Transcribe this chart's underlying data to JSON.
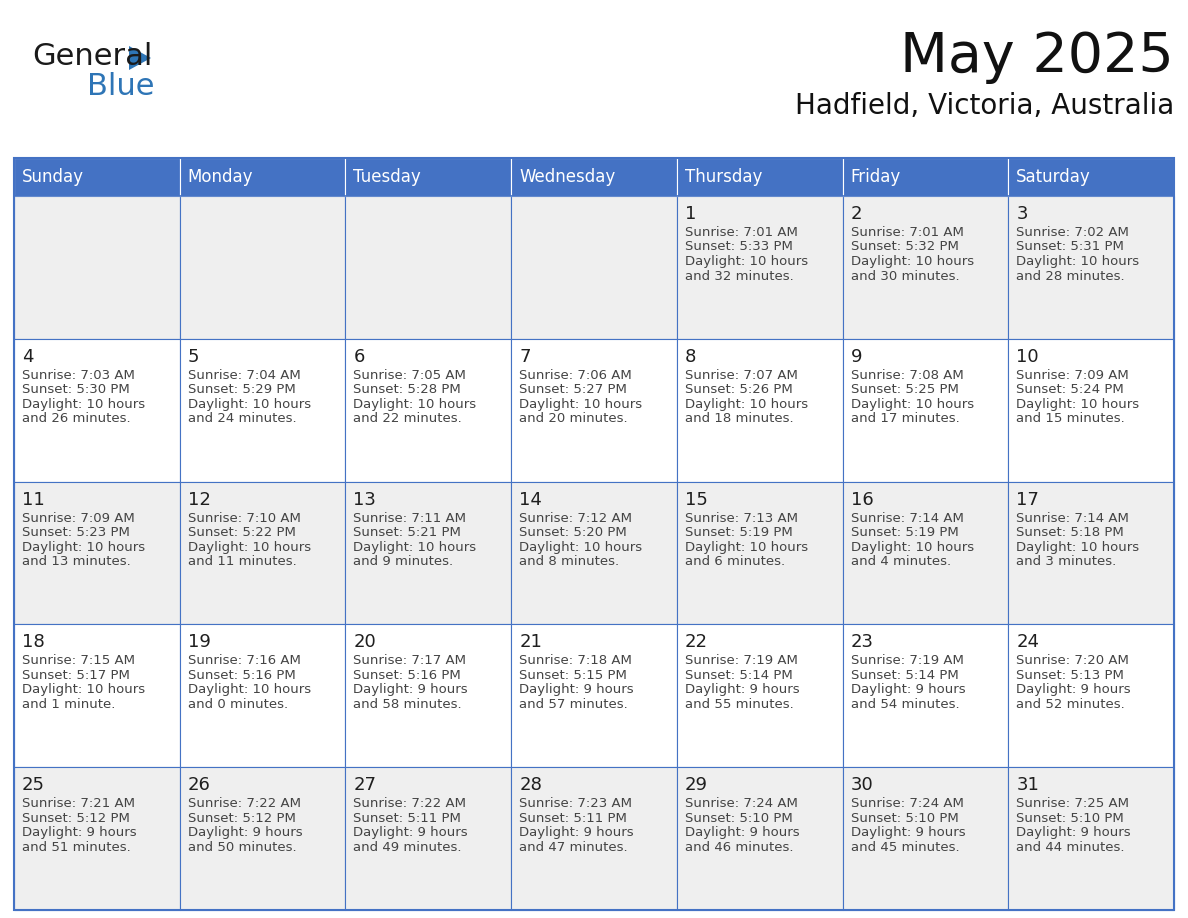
{
  "title": "May 2025",
  "subtitle": "Hadfield, Victoria, Australia",
  "days_of_week": [
    "Sunday",
    "Monday",
    "Tuesday",
    "Wednesday",
    "Thursday",
    "Friday",
    "Saturday"
  ],
  "header_bg": "#4472C4",
  "header_text": "#FFFFFF",
  "cell_bg_odd": "#EFEFEF",
  "cell_bg_even": "#FFFFFF",
  "border_color": "#4472C4",
  "day_num_color": "#1F1F1F",
  "text_color": "#444444",
  "logo_general_color": "#1F1F1F",
  "logo_blue_color": "#2E75B6",
  "calendar_data": [
    [
      {
        "day": null,
        "sunrise": null,
        "sunset": null,
        "daylight_line1": null,
        "daylight_line2": null
      },
      {
        "day": null,
        "sunrise": null,
        "sunset": null,
        "daylight_line1": null,
        "daylight_line2": null
      },
      {
        "day": null,
        "sunrise": null,
        "sunset": null,
        "daylight_line1": null,
        "daylight_line2": null
      },
      {
        "day": null,
        "sunrise": null,
        "sunset": null,
        "daylight_line1": null,
        "daylight_line2": null
      },
      {
        "day": 1,
        "sunrise": "7:01 AM",
        "sunset": "5:33 PM",
        "daylight_line1": "Daylight: 10 hours",
        "daylight_line2": "and 32 minutes."
      },
      {
        "day": 2,
        "sunrise": "7:01 AM",
        "sunset": "5:32 PM",
        "daylight_line1": "Daylight: 10 hours",
        "daylight_line2": "and 30 minutes."
      },
      {
        "day": 3,
        "sunrise": "7:02 AM",
        "sunset": "5:31 PM",
        "daylight_line1": "Daylight: 10 hours",
        "daylight_line2": "and 28 minutes."
      }
    ],
    [
      {
        "day": 4,
        "sunrise": "7:03 AM",
        "sunset": "5:30 PM",
        "daylight_line1": "Daylight: 10 hours",
        "daylight_line2": "and 26 minutes."
      },
      {
        "day": 5,
        "sunrise": "7:04 AM",
        "sunset": "5:29 PM",
        "daylight_line1": "Daylight: 10 hours",
        "daylight_line2": "and 24 minutes."
      },
      {
        "day": 6,
        "sunrise": "7:05 AM",
        "sunset": "5:28 PM",
        "daylight_line1": "Daylight: 10 hours",
        "daylight_line2": "and 22 minutes."
      },
      {
        "day": 7,
        "sunrise": "7:06 AM",
        "sunset": "5:27 PM",
        "daylight_line1": "Daylight: 10 hours",
        "daylight_line2": "and 20 minutes."
      },
      {
        "day": 8,
        "sunrise": "7:07 AM",
        "sunset": "5:26 PM",
        "daylight_line1": "Daylight: 10 hours",
        "daylight_line2": "and 18 minutes."
      },
      {
        "day": 9,
        "sunrise": "7:08 AM",
        "sunset": "5:25 PM",
        "daylight_line1": "Daylight: 10 hours",
        "daylight_line2": "and 17 minutes."
      },
      {
        "day": 10,
        "sunrise": "7:09 AM",
        "sunset": "5:24 PM",
        "daylight_line1": "Daylight: 10 hours",
        "daylight_line2": "and 15 minutes."
      }
    ],
    [
      {
        "day": 11,
        "sunrise": "7:09 AM",
        "sunset": "5:23 PM",
        "daylight_line1": "Daylight: 10 hours",
        "daylight_line2": "and 13 minutes."
      },
      {
        "day": 12,
        "sunrise": "7:10 AM",
        "sunset": "5:22 PM",
        "daylight_line1": "Daylight: 10 hours",
        "daylight_line2": "and 11 minutes."
      },
      {
        "day": 13,
        "sunrise": "7:11 AM",
        "sunset": "5:21 PM",
        "daylight_line1": "Daylight: 10 hours",
        "daylight_line2": "and 9 minutes."
      },
      {
        "day": 14,
        "sunrise": "7:12 AM",
        "sunset": "5:20 PM",
        "daylight_line1": "Daylight: 10 hours",
        "daylight_line2": "and 8 minutes."
      },
      {
        "day": 15,
        "sunrise": "7:13 AM",
        "sunset": "5:19 PM",
        "daylight_line1": "Daylight: 10 hours",
        "daylight_line2": "and 6 minutes."
      },
      {
        "day": 16,
        "sunrise": "7:14 AM",
        "sunset": "5:19 PM",
        "daylight_line1": "Daylight: 10 hours",
        "daylight_line2": "and 4 minutes."
      },
      {
        "day": 17,
        "sunrise": "7:14 AM",
        "sunset": "5:18 PM",
        "daylight_line1": "Daylight: 10 hours",
        "daylight_line2": "and 3 minutes."
      }
    ],
    [
      {
        "day": 18,
        "sunrise": "7:15 AM",
        "sunset": "5:17 PM",
        "daylight_line1": "Daylight: 10 hours",
        "daylight_line2": "and 1 minute."
      },
      {
        "day": 19,
        "sunrise": "7:16 AM",
        "sunset": "5:16 PM",
        "daylight_line1": "Daylight: 10 hours",
        "daylight_line2": "and 0 minutes."
      },
      {
        "day": 20,
        "sunrise": "7:17 AM",
        "sunset": "5:16 PM",
        "daylight_line1": "Daylight: 9 hours",
        "daylight_line2": "and 58 minutes."
      },
      {
        "day": 21,
        "sunrise": "7:18 AM",
        "sunset": "5:15 PM",
        "daylight_line1": "Daylight: 9 hours",
        "daylight_line2": "and 57 minutes."
      },
      {
        "day": 22,
        "sunrise": "7:19 AM",
        "sunset": "5:14 PM",
        "daylight_line1": "Daylight: 9 hours",
        "daylight_line2": "and 55 minutes."
      },
      {
        "day": 23,
        "sunrise": "7:19 AM",
        "sunset": "5:14 PM",
        "daylight_line1": "Daylight: 9 hours",
        "daylight_line2": "and 54 minutes."
      },
      {
        "day": 24,
        "sunrise": "7:20 AM",
        "sunset": "5:13 PM",
        "daylight_line1": "Daylight: 9 hours",
        "daylight_line2": "and 52 minutes."
      }
    ],
    [
      {
        "day": 25,
        "sunrise": "7:21 AM",
        "sunset": "5:12 PM",
        "daylight_line1": "Daylight: 9 hours",
        "daylight_line2": "and 51 minutes."
      },
      {
        "day": 26,
        "sunrise": "7:22 AM",
        "sunset": "5:12 PM",
        "daylight_line1": "Daylight: 9 hours",
        "daylight_line2": "and 50 minutes."
      },
      {
        "day": 27,
        "sunrise": "7:22 AM",
        "sunset": "5:11 PM",
        "daylight_line1": "Daylight: 9 hours",
        "daylight_line2": "and 49 minutes."
      },
      {
        "day": 28,
        "sunrise": "7:23 AM",
        "sunset": "5:11 PM",
        "daylight_line1": "Daylight: 9 hours",
        "daylight_line2": "and 47 minutes."
      },
      {
        "day": 29,
        "sunrise": "7:24 AM",
        "sunset": "5:10 PM",
        "daylight_line1": "Daylight: 9 hours",
        "daylight_line2": "and 46 minutes."
      },
      {
        "day": 30,
        "sunrise": "7:24 AM",
        "sunset": "5:10 PM",
        "daylight_line1": "Daylight: 9 hours",
        "daylight_line2": "and 45 minutes."
      },
      {
        "day": 31,
        "sunrise": "7:25 AM",
        "sunset": "5:10 PM",
        "daylight_line1": "Daylight: 9 hours",
        "daylight_line2": "and 44 minutes."
      }
    ]
  ]
}
